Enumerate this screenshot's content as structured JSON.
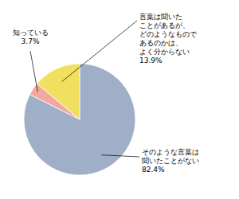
{
  "chart_data": {
    "type": "pie",
    "categories": [
      "そのような言葉は\n聞いたことがない",
      "知っている",
      "言葉は聞いた\nことがあるが、\nどのようなもので\nあるのかは、\nよく分からない"
    ],
    "values": [
      82.4,
      3.7,
      13.9
    ],
    "value_labels": [
      "82.4%",
      "3.7%",
      "13.9%"
    ],
    "colors": [
      "#a0afc8",
      "#f0a8a0",
      "#f0e060"
    ],
    "data_labels": true
  }
}
